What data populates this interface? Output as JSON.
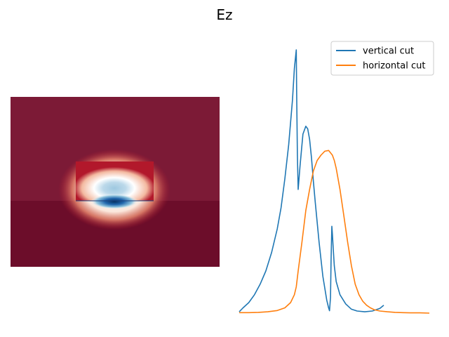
{
  "figure": {
    "title": "Ez"
  },
  "chart_data": [
    {
      "type": "heatmap",
      "title": "",
      "xlabel": "",
      "ylabel": "",
      "axes": "off",
      "colormap": "RdBu",
      "field": "Ez",
      "regions": [
        {
          "name": "cladding",
          "level": 0.85
        },
        {
          "name": "substrate",
          "level": 1.0
        },
        {
          "name": "core",
          "mode_peak": -1.0
        }
      ]
    },
    {
      "type": "line",
      "title": "",
      "xlabel": "",
      "ylabel": "",
      "axes": "off",
      "legend": "top-right",
      "xlim": [
        0,
        1
      ],
      "ylim": [
        0,
        1
      ],
      "series": [
        {
          "name": "vertical cut",
          "color": "#1f77b4",
          "x": [
            0.0,
            0.02,
            0.05,
            0.08,
            0.11,
            0.14,
            0.17,
            0.2,
            0.22,
            0.24,
            0.26,
            0.28,
            0.29,
            0.3,
            0.302,
            0.306,
            0.31,
            0.32,
            0.335,
            0.35,
            0.36,
            0.37,
            0.38,
            0.39,
            0.4,
            0.42,
            0.44,
            0.46,
            0.47,
            0.475,
            0.48,
            0.483,
            0.487,
            0.49,
            0.495,
            0.5,
            0.51,
            0.53,
            0.56,
            0.59,
            0.62,
            0.66,
            0.7,
            0.74,
            0.76
          ],
          "values": [
            0.005,
            0.02,
            0.04,
            0.07,
            0.11,
            0.16,
            0.23,
            0.32,
            0.4,
            0.51,
            0.64,
            0.81,
            0.93,
            1.0,
            0.85,
            0.6,
            0.47,
            0.56,
            0.68,
            0.71,
            0.7,
            0.66,
            0.59,
            0.5,
            0.42,
            0.27,
            0.14,
            0.05,
            0.02,
            0.009,
            0.06,
            0.2,
            0.33,
            0.3,
            0.24,
            0.18,
            0.12,
            0.07,
            0.035,
            0.015,
            0.008,
            0.005,
            0.008,
            0.018,
            0.03
          ]
        },
        {
          "name": "horizontal cut",
          "color": "#ff7f0e",
          "x": [
            0.0,
            0.05,
            0.1,
            0.15,
            0.2,
            0.24,
            0.27,
            0.29,
            0.3,
            0.31,
            0.33,
            0.35,
            0.37,
            0.39,
            0.41,
            0.43,
            0.45,
            0.47,
            0.49,
            0.5,
            0.51,
            0.53,
            0.55,
            0.57,
            0.59,
            0.61,
            0.63,
            0.65,
            0.67,
            0.69,
            0.71,
            0.74,
            0.78,
            0.82,
            0.86,
            0.9,
            0.95,
            1.0
          ],
          "values": [
            0.002,
            0.002,
            0.003,
            0.005,
            0.01,
            0.02,
            0.04,
            0.07,
            0.1,
            0.16,
            0.27,
            0.39,
            0.47,
            0.54,
            0.58,
            0.6,
            0.615,
            0.618,
            0.6,
            0.58,
            0.55,
            0.47,
            0.37,
            0.27,
            0.18,
            0.11,
            0.07,
            0.045,
            0.03,
            0.02,
            0.013,
            0.008,
            0.005,
            0.003,
            0.002,
            0.001,
            0.001,
            0.0
          ]
        }
      ]
    }
  ]
}
